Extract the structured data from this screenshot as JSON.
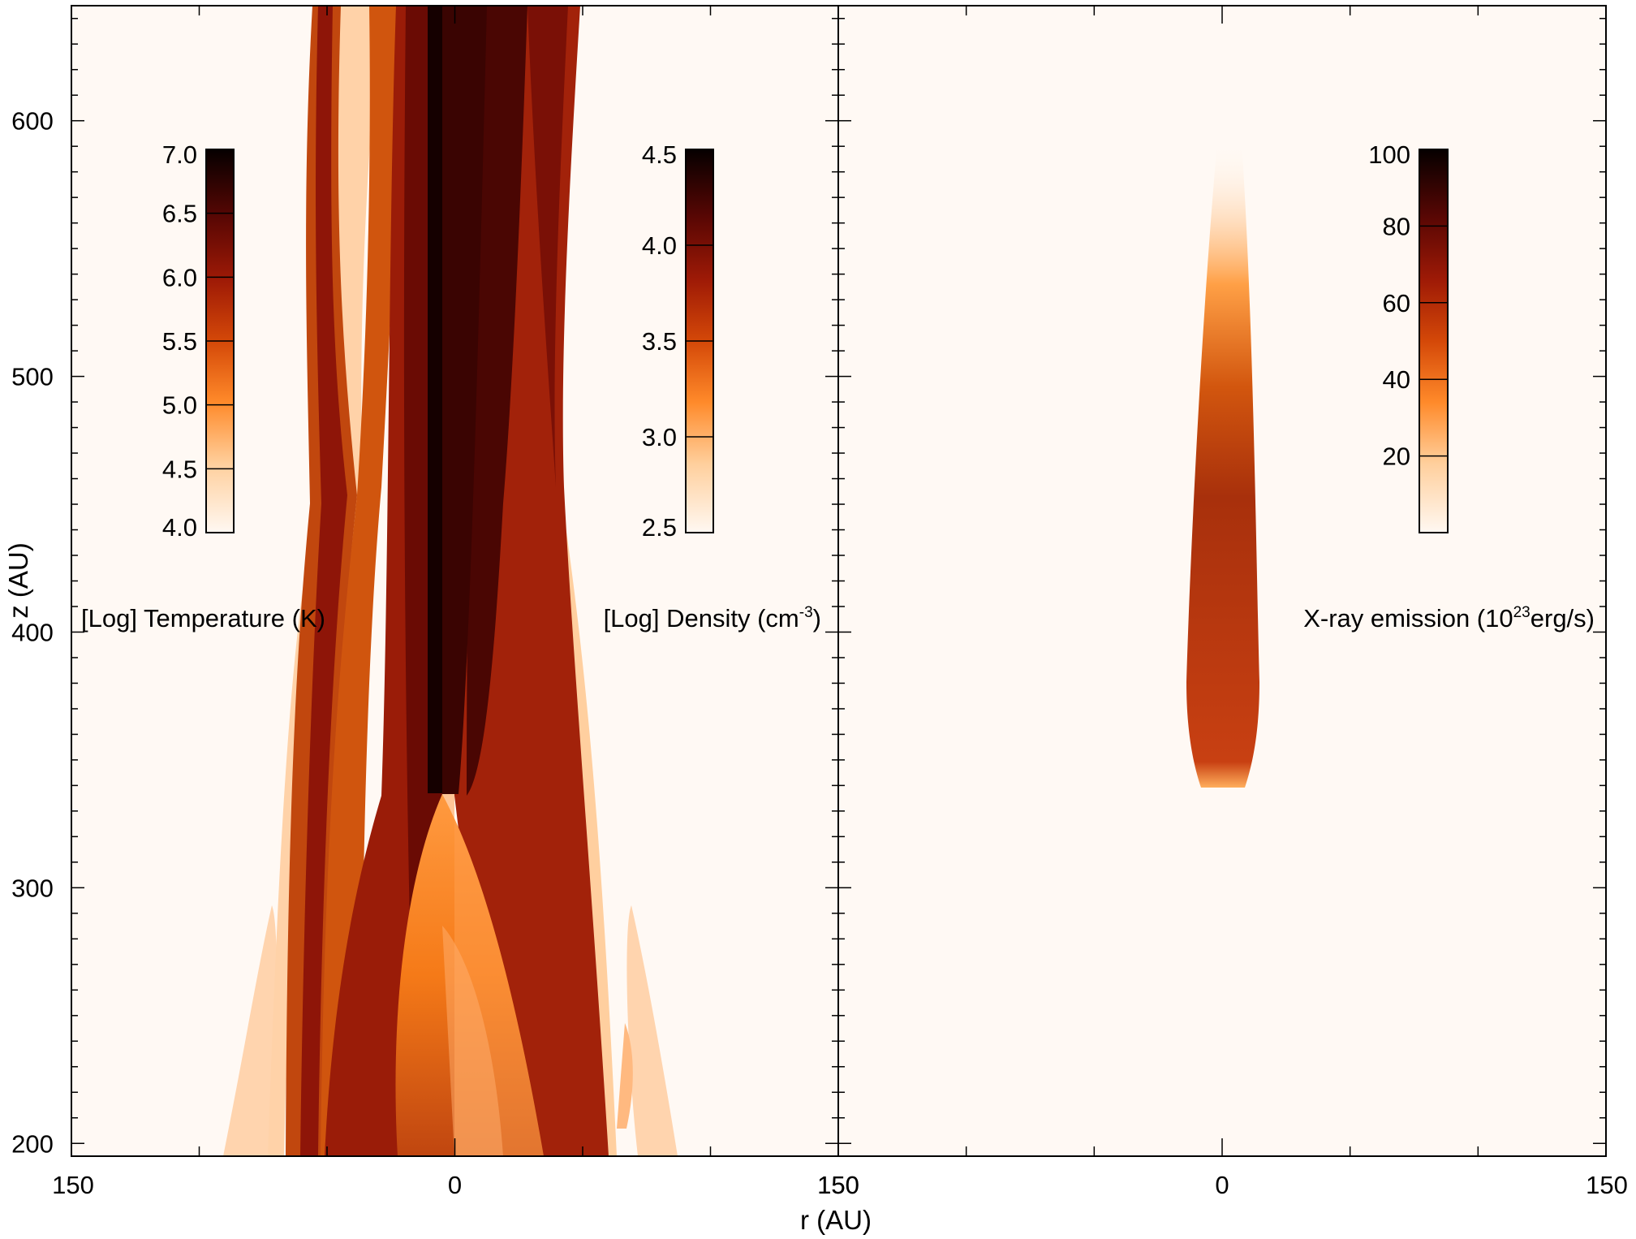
{
  "chart_data": {
    "type": "heatmap",
    "xlabel": "r (AU)",
    "ylabel": "z (AU)",
    "ylim": [
      195,
      645
    ],
    "yticks": [
      "200",
      "300",
      "400",
      "500",
      "600"
    ],
    "panels": [
      {
        "id": "temperature-density",
        "xlim": [
          -150,
          150
        ],
        "xtick_labels": [
          "150",
          "0",
          "150"
        ],
        "colormaps": [
          {
            "id": "temperature",
            "label_prefix": "[Log] Temperature (K)",
            "label_sup": "",
            "label_suffix": "",
            "ticks": [
              "4.0",
              "4.5",
              "5.0",
              "5.5",
              "6.0",
              "6.5",
              "7.0"
            ],
            "range": [
              4.0,
              7.0
            ]
          },
          {
            "id": "density",
            "label_prefix": "[Log] Density (cm",
            "label_sup": "-3",
            "label_suffix": ")",
            "ticks": [
              "2.5",
              "3.0",
              "3.5",
              "4.0",
              "4.5"
            ],
            "range": [
              2.5,
              4.5
            ]
          }
        ]
      },
      {
        "id": "xray",
        "xlim": [
          -150,
          150
        ],
        "xtick_labels": [
          "150",
          "0",
          "150"
        ],
        "colormaps": [
          {
            "id": "xray",
            "label_prefix": "X-ray emission (10",
            "label_sup": "23",
            "label_suffix": "erg/s)",
            "ticks": [
              "20",
              "40",
              "60",
              "80",
              "100"
            ],
            "range": [
              0,
              100
            ]
          }
        ]
      }
    ],
    "colors": {
      "background": "#fff9f4",
      "scale": [
        "#fff8f2",
        "#ffd8b0",
        "#ff9a40",
        "#e86a10",
        "#b83208",
        "#8a1004",
        "#4e0602",
        "#0a0000"
      ]
    }
  }
}
